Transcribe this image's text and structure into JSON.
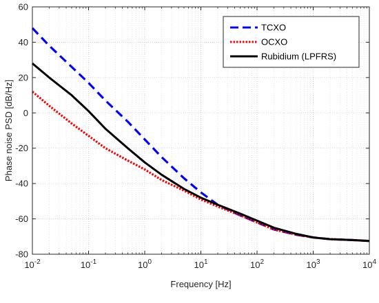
{
  "chart_data": {
    "type": "line",
    "xlabel": "Frequency [Hz]",
    "ylabel": "Phase noise PSD [dB/Hz]",
    "xscale": "log",
    "xlim": [
      0.01,
      10000
    ],
    "ylim": [
      -80,
      60
    ],
    "xticks": [
      0.01,
      0.1,
      1,
      10,
      100,
      1000,
      10000
    ],
    "xtick_labels": [
      {
        "base": "10",
        "exp": "-2"
      },
      {
        "base": "10",
        "exp": "-1"
      },
      {
        "base": "10",
        "exp": "0"
      },
      {
        "base": "10",
        "exp": "1"
      },
      {
        "base": "10",
        "exp": "2"
      },
      {
        "base": "10",
        "exp": "3"
      },
      {
        "base": "10",
        "exp": "4"
      }
    ],
    "yticks": [
      -80,
      -60,
      -40,
      -20,
      0,
      20,
      40,
      60
    ],
    "ytick_labels": [
      "-80",
      "-60",
      "-40",
      "-20",
      "0",
      "20",
      "40",
      "60"
    ],
    "grid": true,
    "legend_position": "top-right",
    "series": [
      {
        "name": "TCXO",
        "color": "#0000ff",
        "style": "dashed",
        "x": [
          0.01,
          0.02,
          0.05,
          0.1,
          0.2,
          0.5,
          1,
          2,
          5,
          10,
          20,
          50,
          100,
          200,
          500,
          1000,
          2000,
          5000,
          10000
        ],
        "y": [
          48,
          38,
          26,
          17,
          7,
          -5,
          -15,
          -25,
          -37,
          -45,
          -52,
          -58,
          -62,
          -66,
          -69,
          -70.5,
          -71.5,
          -72,
          -72.5
        ]
      },
      {
        "name": "OCXO",
        "color": "#ff0000",
        "style": "dotted",
        "x": [
          0.01,
          0.02,
          0.05,
          0.1,
          0.2,
          0.5,
          1,
          2,
          5,
          10,
          20,
          50,
          100,
          200,
          500,
          1000,
          2000,
          5000,
          10000
        ],
        "y": [
          12,
          4,
          -6,
          -13,
          -20,
          -27,
          -32,
          -38,
          -44,
          -49,
          -53,
          -58,
          -62,
          -66,
          -69,
          -70.5,
          -71.5,
          -72,
          -72.5
        ]
      },
      {
        "name": "Rubidium (LPFRS)",
        "color": "#000000",
        "style": "solid",
        "x": [
          0.01,
          0.02,
          0.05,
          0.1,
          0.2,
          0.5,
          1,
          2,
          5,
          10,
          20,
          50,
          100,
          200,
          500,
          1000,
          2000,
          5000,
          10000
        ],
        "y": [
          28,
          20,
          10,
          1,
          -9,
          -20,
          -28,
          -35,
          -43,
          -48,
          -52,
          -57,
          -61,
          -65,
          -68.5,
          -70.5,
          -71.5,
          -72,
          -72.5
        ]
      }
    ]
  }
}
